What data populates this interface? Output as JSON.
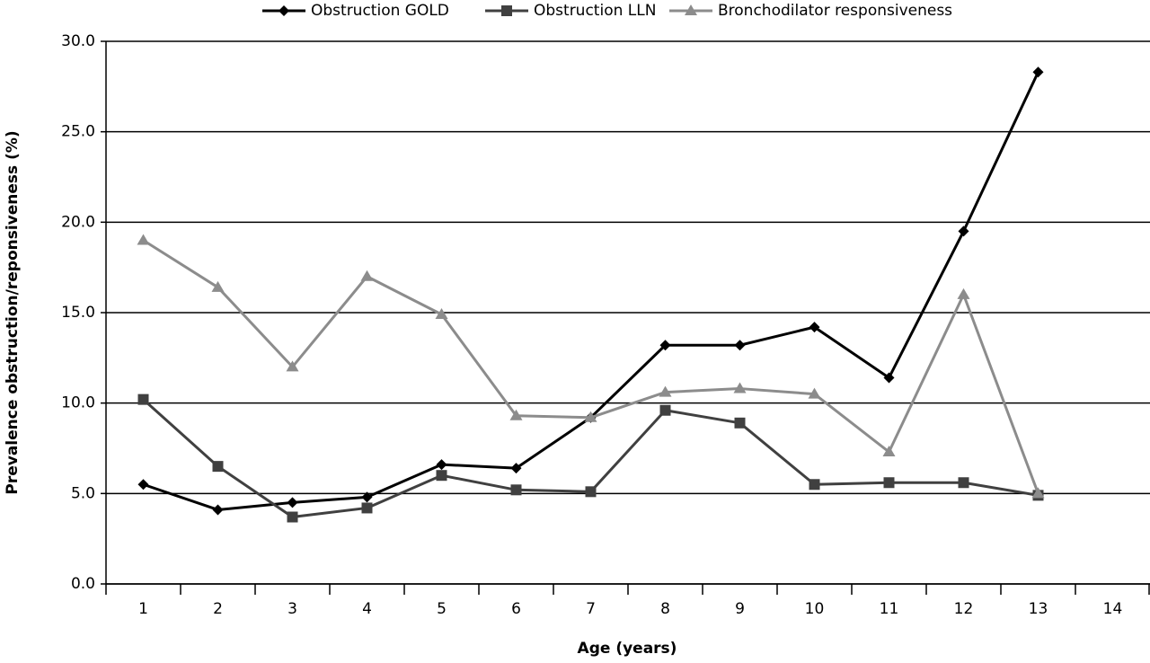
{
  "chart_data": {
    "type": "line",
    "xlabel": "Age (years)",
    "ylabel": "Prevalence obstruction/reponsiveness (%)",
    "categories": [
      1,
      2,
      3,
      4,
      5,
      6,
      7,
      8,
      9,
      10,
      11,
      12,
      13,
      14
    ],
    "series": [
      {
        "name": "Obstruction GOLD",
        "color": "#000000",
        "marker": "diamond",
        "values": [
          5.5,
          4.1,
          4.5,
          4.8,
          6.6,
          6.4,
          9.2,
          13.2,
          13.2,
          14.2,
          11.4,
          19.5,
          28.3,
          null
        ]
      },
      {
        "name": "Obstruction LLN",
        "color": "#404040",
        "marker": "square",
        "values": [
          10.2,
          6.5,
          3.7,
          4.2,
          6.0,
          5.2,
          5.1,
          9.6,
          8.9,
          5.5,
          5.6,
          5.6,
          4.9,
          null
        ]
      },
      {
        "name": "Bronchodilator responsiveness",
        "color": "#8c8c8c",
        "marker": "triangle",
        "values": [
          19.0,
          16.4,
          12.0,
          17.0,
          14.9,
          9.3,
          9.2,
          10.6,
          10.8,
          10.5,
          7.3,
          16.0,
          5.0,
          null
        ]
      }
    ],
    "ylim": [
      0,
      30
    ],
    "yticks": [
      {
        "value": 0,
        "label": "0.0"
      },
      {
        "value": 5,
        "label": "5.0"
      },
      {
        "value": 10,
        "label": "10.0"
      },
      {
        "value": 15,
        "label": "15.0"
      },
      {
        "value": 20,
        "label": "20.0"
      },
      {
        "value": 25,
        "label": "25.0"
      },
      {
        "value": 30,
        "label": "30.0"
      }
    ],
    "grid": true,
    "legend": "top"
  }
}
